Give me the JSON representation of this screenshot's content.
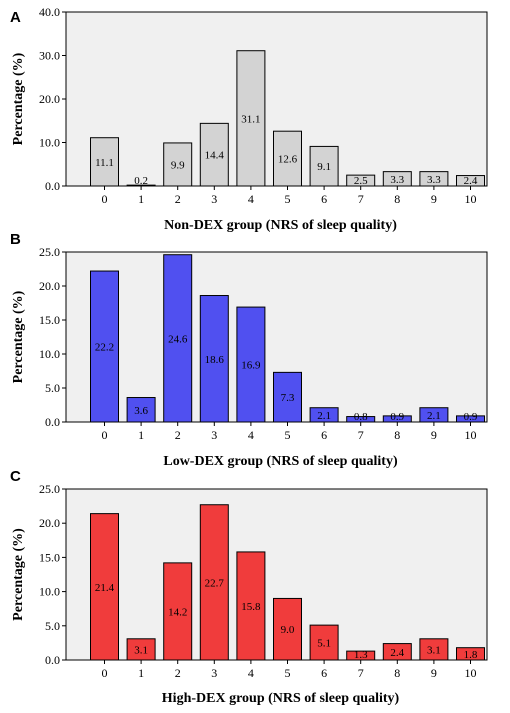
{
  "chart_data": [
    {
      "type": "bar",
      "panel": "A",
      "categories": [
        "0",
        "1",
        "2",
        "3",
        "4",
        "5",
        "6",
        "7",
        "8",
        "9",
        "10"
      ],
      "values": [
        11.1,
        0.2,
        9.9,
        14.4,
        31.1,
        12.6,
        9.1,
        2.5,
        3.3,
        3.3,
        2.4
      ],
      "data_labels": [
        "11.1",
        "0.2",
        "9.9",
        "14.4",
        "31.1",
        "12.6",
        "9.1",
        "2.5",
        "3.3",
        "3.3",
        "2.4"
      ],
      "xlabel": "Non-DEX group (NRS of sleep quality)",
      "ylabel": "Percentage (%)",
      "ylim": [
        0,
        40
      ],
      "yticks": [
        "0.0",
        "10.0",
        "20.0",
        "30.0",
        "40.0"
      ],
      "bar_color": "#d3d3d3",
      "plot_background": "#f0f0f0",
      "grid": false
    },
    {
      "type": "bar",
      "panel": "B",
      "categories": [
        "0",
        "1",
        "2",
        "3",
        "4",
        "5",
        "6",
        "7",
        "8",
        "9",
        "10"
      ],
      "values": [
        22.2,
        3.6,
        24.6,
        18.6,
        16.9,
        7.3,
        2.1,
        0.8,
        0.9,
        2.1,
        0.9
      ],
      "data_labels": [
        "22.2",
        "3.6",
        "24.6",
        "18.6",
        "16.9",
        "7.3",
        "2.1",
        "0.8",
        "0.9",
        "2.1",
        "0.9"
      ],
      "xlabel": "Low-DEX group (NRS of sleep quality)",
      "ylabel": "Percentage (%)",
      "ylim": [
        0,
        25
      ],
      "yticks": [
        "0.0",
        "5.0",
        "10.0",
        "15.0",
        "20.0",
        "25.0"
      ],
      "bar_color": "#5050f0",
      "plot_background": "#f0f0f0",
      "grid": false
    },
    {
      "type": "bar",
      "panel": "C",
      "categories": [
        "0",
        "1",
        "2",
        "3",
        "4",
        "5",
        "6",
        "7",
        "8",
        "9",
        "10"
      ],
      "values": [
        21.4,
        3.1,
        14.2,
        22.7,
        15.8,
        9.0,
        5.1,
        1.3,
        2.4,
        3.1,
        1.8
      ],
      "data_labels": [
        "21.4",
        "3.1",
        "14.2",
        "22.7",
        "15.8",
        "9.0",
        "5.1",
        "1.3",
        "2.4",
        "3.1",
        "1.8"
      ],
      "xlabel": "High-DEX group (NRS of sleep quality)",
      "ylabel": "Percentage (%)",
      "ylim": [
        0,
        25
      ],
      "yticks": [
        "0.0",
        "5.0",
        "10.0",
        "15.0",
        "20.0",
        "25.0"
      ],
      "bar_color": "#f03c3c",
      "plot_background": "#f0f0f0",
      "grid": false
    }
  ]
}
